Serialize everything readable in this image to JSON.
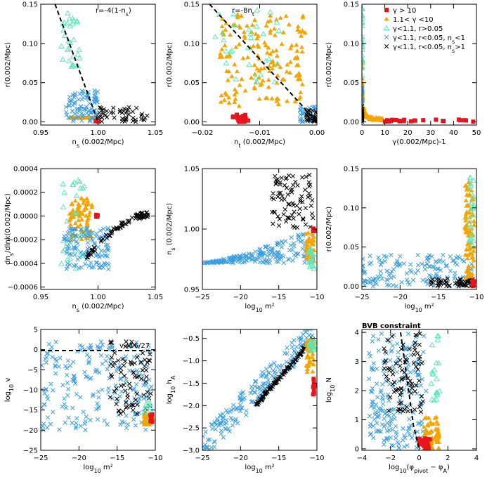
{
  "figure": {
    "marker_colors": {
      "red_square": "#e8141c",
      "orange_triangle": "#f5a400",
      "cyan_open_triangle": "#5de8b8",
      "blue_x": "#3a9ee0",
      "black_x": "#000000"
    }
  },
  "legend": {
    "entries": [
      {
        "marker": "red_square",
        "label": "γ > 10"
      },
      {
        "marker": "orange_triangle",
        "label": "1.1< γ <10"
      },
      {
        "marker": "cyan_open_triangle",
        "label": "γ<1.1, r>0.05"
      },
      {
        "marker": "blue_x",
        "label": "γ<1.1, r<0.05, ns<1"
      },
      {
        "marker": "black_x",
        "label": "γ<1.1, r<0.05, ns>1"
      }
    ]
  },
  "chart_data": [
    {
      "type": "scatter",
      "xlabel": "ns (0.002/Mpc)",
      "ylabel": "r(0.002/Mpc)",
      "xlim": [
        0.95,
        1.05
      ],
      "ylim": [
        -0.004,
        0.15
      ],
      "xticks": [
        0.95,
        1.0,
        1.05
      ],
      "xticklabels": [
        "0.95",
        "1.00",
        "1.05"
      ],
      "yticks": [
        0.0,
        0.05,
        0.1,
        0.15
      ],
      "yticklabels": [
        "0.00",
        "0.05",
        "0.10",
        "0.15"
      ],
      "annotations": [
        {
          "text": "r=-4(1-ns)"
        }
      ],
      "dashed_line": [
        [
          0.9625,
          0.15
        ],
        [
          1.0,
          0.0
        ]
      ],
      "series": [
        {
          "marker": "orange_triangle",
          "x_range": [
            0.975,
            1.0
          ],
          "y_range": [
            0.01,
            0.13
          ],
          "trend": "band along dashed line",
          "count": 120
        },
        {
          "marker": "cyan_open_triangle",
          "x_range": [
            0.968,
            0.985
          ],
          "y_range": [
            0.07,
            0.14
          ],
          "count": 30
        },
        {
          "marker": "blue_x",
          "x_range": [
            0.972,
            1.0
          ],
          "y_range": [
            0.0,
            0.04
          ],
          "count": 90
        },
        {
          "marker": "black_x",
          "x_range": [
            1.0,
            1.045
          ],
          "y_range": [
            0.0,
            0.02
          ],
          "count": 50
        },
        {
          "marker": "red_square",
          "x_range": [
            0.998,
            1.0
          ],
          "y_range": [
            0.0,
            0.002
          ],
          "count": 8
        }
      ]
    },
    {
      "type": "scatter",
      "xlabel": "nt (0.002/Mpc)",
      "ylabel": "r(0.002/Mpc)",
      "xlim": [
        -0.02,
        0.0
      ],
      "ylim": [
        -0.004,
        0.15
      ],
      "xticks": [
        -0.02,
        -0.01,
        0.0
      ],
      "xticklabels": [
        "−0.02",
        "−0.01",
        "0.00"
      ],
      "yticks": [
        0.0,
        0.05,
        0.1,
        0.15
      ],
      "yticklabels": [
        "0.00",
        "0.05",
        "0.10",
        "0.15"
      ],
      "annotations": [
        {
          "text": "r=-8nt"
        }
      ],
      "dashed_line": [
        [
          -0.01875,
          0.15
        ],
        [
          0.0,
          0.0
        ]
      ],
      "series": [
        {
          "marker": "orange_triangle",
          "x_range": [
            -0.017,
            -0.002
          ],
          "y_range": [
            0.02,
            0.14
          ],
          "count": 160
        },
        {
          "marker": "cyan_open_triangle",
          "x_range": [
            -0.018,
            -0.006
          ],
          "y_range": [
            0.05,
            0.145
          ],
          "count": 30
        },
        {
          "marker": "blue_x",
          "x_range": [
            -0.003,
            0.0
          ],
          "y_range": [
            0.0,
            0.02
          ],
          "count": 40
        },
        {
          "marker": "black_x",
          "x_range": [
            -0.002,
            0.0
          ],
          "y_range": [
            0.0,
            0.015
          ],
          "count": 30
        },
        {
          "marker": "red_square",
          "x_range": [
            -0.015,
            -0.012
          ],
          "y_range": [
            0.0,
            0.01
          ],
          "count": 25
        }
      ]
    },
    {
      "type": "scatter",
      "xlabel": "γ(0.002/Mpc)-1",
      "ylabel": "r(0.002/Mpc)",
      "xlim": [
        0,
        50
      ],
      "ylim": [
        -0.004,
        0.15
      ],
      "xticks": [
        0,
        10,
        20,
        30,
        40,
        50
      ],
      "xticklabels": [
        "0",
        "10",
        "20",
        "30",
        "40",
        "50"
      ],
      "yticks": [
        0.0,
        0.05,
        0.1,
        0.15
      ],
      "yticklabels": [
        "0.00",
        "0.05",
        "0.10",
        "0.15"
      ],
      "series": [
        {
          "marker": "orange_triangle",
          "x_range": [
            0.1,
            9
          ],
          "y_range": [
            0.003,
            0.15
          ],
          "trend": "r decreasing with gamma",
          "count": 90
        },
        {
          "marker": "cyan_open_triangle",
          "x_range": [
            0.0,
            0.1
          ],
          "y_range": [
            0.05,
            0.15
          ],
          "count": 25
        },
        {
          "marker": "blue_x",
          "x_range": [
            0.0,
            0.1
          ],
          "y_range": [
            0.0,
            0.05
          ],
          "count": 30
        },
        {
          "marker": "black_x",
          "x_range": [
            0.0,
            0.1
          ],
          "y_range": [
            0.0,
            0.02
          ],
          "count": 20
        },
        {
          "marker": "red_square",
          "x_range": [
            10,
            49
          ],
          "y_range": [
            0.0,
            0.003
          ],
          "count": 25
        }
      ]
    },
    {
      "type": "scatter",
      "xlabel": "ns (0.002/Mpc)",
      "ylabel": "dns/dlnk(0.002/Mpc)",
      "xlim": [
        0.95,
        1.05
      ],
      "ylim": [
        -0.00062,
        0.0004
      ],
      "xticks": [
        0.95,
        1.0,
        1.05
      ],
      "xticklabels": [
        "0.95",
        "1.00",
        "1.05"
      ],
      "yticks": [
        -0.0006,
        -0.0004,
        -0.0002,
        0.0,
        0.0002,
        0.0004
      ],
      "yticklabels": [
        "−0.0006",
        "−0.0004",
        "−0.0002",
        "0.0000",
        "0.0002",
        "0.0004"
      ],
      "series": [
        {
          "marker": "orange_triangle",
          "x_range": [
            0.975,
            0.995
          ],
          "y_range": [
            -0.0002,
            0.00015
          ],
          "count": 80
        },
        {
          "marker": "cyan_open_triangle",
          "x_range": [
            0.968,
            0.99
          ],
          "y_range": [
            -0.00045,
            0.0003
          ],
          "count": 30
        },
        {
          "marker": "blue_x",
          "x_range": [
            0.97,
            1.01
          ],
          "y_range": [
            -0.00045,
            -0.0001
          ],
          "count": 120
        },
        {
          "marker": "black_x",
          "x_range": [
            0.99,
            1.045
          ],
          "y_range": [
            -0.00035,
            3e-05
          ],
          "trend": "rising curve",
          "count": 80
        },
        {
          "marker": "red_square",
          "x_range": [
            0.998,
            1.0
          ],
          "y_range": [
            -1e-05,
            1e-05
          ],
          "count": 5
        }
      ]
    },
    {
      "type": "scatter",
      "xlabel": "log10 m²",
      "ylabel": "ns (0.002/Mpc)",
      "xlim": [
        -25,
        -10
      ],
      "ylim": [
        0.95,
        1.05
      ],
      "xticks": [
        -25,
        -20,
        -15,
        -10
      ],
      "xticklabels": [
        "−25",
        "−20",
        "−15",
        "−10"
      ],
      "yticks": [
        0.95,
        1.0,
        1.05
      ],
      "yticklabels": [
        "0.95",
        "1.00",
        "1.05"
      ],
      "series": [
        {
          "marker": "blue_x",
          "x_range": [
            -25,
            -10.5
          ],
          "y_range": [
            0.97,
            1.0
          ],
          "trend": "flat near 0.972 rising to 0.99",
          "count": 200
        },
        {
          "marker": "black_x",
          "x_range": [
            -16,
            -10.5
          ],
          "y_range": [
            1.0,
            1.045
          ],
          "count": 80
        },
        {
          "marker": "orange_triangle",
          "x_range": [
            -11.5,
            -10.3
          ],
          "y_range": [
            0.972,
            1.0
          ],
          "count": 40
        },
        {
          "marker": "cyan_open_triangle",
          "x_range": [
            -11.0,
            -10.3
          ],
          "y_range": [
            0.965,
            0.985
          ],
          "count": 20
        },
        {
          "marker": "red_square",
          "x_range": [
            -10.6,
            -10.3
          ],
          "y_range": [
            0.998,
            1.001
          ],
          "count": 6
        }
      ]
    },
    {
      "type": "scatter",
      "xlabel": "log10 m²",
      "ylabel": "r(0.002/Mpc)",
      "xlim": [
        -25,
        -10
      ],
      "ylim": [
        -0.004,
        0.15
      ],
      "xticks": [
        -25,
        -20,
        -15,
        -10
      ],
      "xticklabels": [
        "−25",
        "−20",
        "−15",
        "−10"
      ],
      "yticks": [
        0.0,
        0.05,
        0.1,
        0.15
      ],
      "yticklabels": [
        "0.00",
        "0.05",
        "0.10",
        "0.15"
      ],
      "series": [
        {
          "marker": "blue_x",
          "x_range": [
            -25,
            -10.5
          ],
          "y_range": [
            0.0,
            0.04
          ],
          "count": 150
        },
        {
          "marker": "black_x",
          "x_range": [
            -16,
            -10.5
          ],
          "y_range": [
            0.0,
            0.01
          ],
          "count": 60
        },
        {
          "marker": "orange_triangle",
          "x_range": [
            -11.5,
            -10.3
          ],
          "y_range": [
            0.01,
            0.14
          ],
          "count": 80
        },
        {
          "marker": "cyan_open_triangle",
          "x_range": [
            -11.0,
            -10.3
          ],
          "y_range": [
            0.05,
            0.14
          ],
          "count": 25
        },
        {
          "marker": "red_square",
          "x_range": [
            -10.6,
            -10.3
          ],
          "y_range": [
            0.0,
            0.01
          ],
          "count": 8
        }
      ]
    },
    {
      "type": "scatter",
      "xlabel": "log10 m²",
      "ylabel": "log10 v",
      "xlim": [
        -25,
        -10
      ],
      "ylim": [
        -25,
        5
      ],
      "xticks": [
        -25,
        -20,
        -15,
        -10
      ],
      "xticklabels": [
        "−25",
        "−20",
        "−15",
        "−10"
      ],
      "yticks": [
        -25,
        -20,
        -15,
        -10,
        -5,
        0,
        5
      ],
      "yticklabels": [
        "−25",
        "−20",
        "−15",
        "−10",
        "−5",
        "0",
        "5"
      ],
      "annotations": [
        {
          "text": "v=16/27"
        }
      ],
      "dashed_line": [
        [
          -25,
          -0.23
        ],
        [
          -10,
          -0.23
        ]
      ],
      "series": [
        {
          "marker": "blue_x",
          "x_range": [
            -25,
            -10.5
          ],
          "y_range": [
            -20,
            2
          ],
          "count": 200
        },
        {
          "marker": "black_x",
          "x_range": [
            -16,
            -10.5
          ],
          "y_range": [
            -16,
            2
          ],
          "count": 80
        },
        {
          "marker": "cyan_open_triangle",
          "x_range": [
            -11.5,
            -10.3
          ],
          "y_range": [
            -19,
            -12
          ],
          "count": 20
        },
        {
          "marker": "orange_triangle",
          "x_range": [
            -11.5,
            -10.3
          ],
          "y_range": [
            -19,
            -16
          ],
          "count": 30
        },
        {
          "marker": "red_square",
          "x_range": [
            -10.8,
            -10.3
          ],
          "y_range": [
            -18,
            -16
          ],
          "count": 6
        }
      ]
    },
    {
      "type": "scatter",
      "xlabel": "log10 m²",
      "ylabel": "log10 hA",
      "xlim": [
        -25,
        -10
      ],
      "ylim": [
        -3.0,
        -0.3
      ],
      "xticks": [
        -25,
        -20,
        -15,
        -10
      ],
      "xticklabels": [
        "−25",
        "−20",
        "−15",
        "−10"
      ],
      "yticks": [
        -3.0,
        -2.5,
        -2.0,
        -1.5,
        -1.0,
        -0.5
      ],
      "yticklabels": [
        "−3.0",
        "−2.5",
        "−2.0",
        "−1.5",
        "−1.0",
        "−0.5"
      ],
      "series": [
        {
          "marker": "blue_x",
          "x_range": [
            -25,
            -10.5
          ],
          "y_range": [
            -2.9,
            -0.4
          ],
          "trend": "increasing",
          "count": 200
        },
        {
          "marker": "black_x",
          "x_range": [
            -18,
            -10.5
          ],
          "y_range": [
            -2.0,
            -0.5
          ],
          "trend": "tight increasing line",
          "count": 100
        },
        {
          "marker": "orange_triangle",
          "x_range": [
            -11.5,
            -10.3
          ],
          "y_range": [
            -1.3,
            -0.5
          ],
          "count": 40
        },
        {
          "marker": "cyan_open_triangle",
          "x_range": [
            -11.0,
            -10.3
          ],
          "y_range": [
            -0.8,
            -0.5
          ],
          "count": 15
        },
        {
          "marker": "red_square",
          "x_range": [
            -10.5,
            -10.3
          ],
          "y_range": [
            -1.8,
            -1.4
          ],
          "count": 8
        }
      ]
    },
    {
      "type": "scatter",
      "title": "BVB constraint",
      "xlabel": "log10(φpivot − φA)",
      "ylabel": "log10 N",
      "xlim": [
        -4,
        4
      ],
      "ylim": [
        -0.05,
        4.1
      ],
      "xticks": [
        -4,
        -2,
        0,
        2,
        4
      ],
      "xticklabels": [
        "−4",
        "−2",
        "0",
        "2",
        "4"
      ],
      "yticks": [
        0,
        1,
        2,
        3,
        4
      ],
      "yticklabels": [
        "0",
        "1",
        "2",
        "3",
        "4"
      ],
      "dashed_line": [
        [
          -1.3,
          4.0
        ],
        [
          -0.4,
          0.8
        ],
        [
          0.0,
          0.0
        ]
      ],
      "series": [
        {
          "marker": "blue_x",
          "x_range": [
            -3.5,
            0.5
          ],
          "y_range": [
            0.0,
            4.0
          ],
          "count": 200
        },
        {
          "marker": "black_x",
          "x_range": [
            -2.5,
            0.3
          ],
          "y_range": [
            1.2,
            4.0
          ],
          "count": 80
        },
        {
          "marker": "orange_triangle",
          "x_range": [
            0.3,
            1.4
          ],
          "y_range": [
            0.0,
            1.1
          ],
          "count": 60
        },
        {
          "marker": "cyan_open_triangle",
          "x_range": [
            0.8,
            1.5
          ],
          "y_range": [
            1.5,
            4.0
          ],
          "count": 20
        },
        {
          "marker": "red_square",
          "x_range": [
            0.0,
            0.8
          ],
          "y_range": [
            0.0,
            0.4
          ],
          "count": 20
        }
      ]
    }
  ]
}
